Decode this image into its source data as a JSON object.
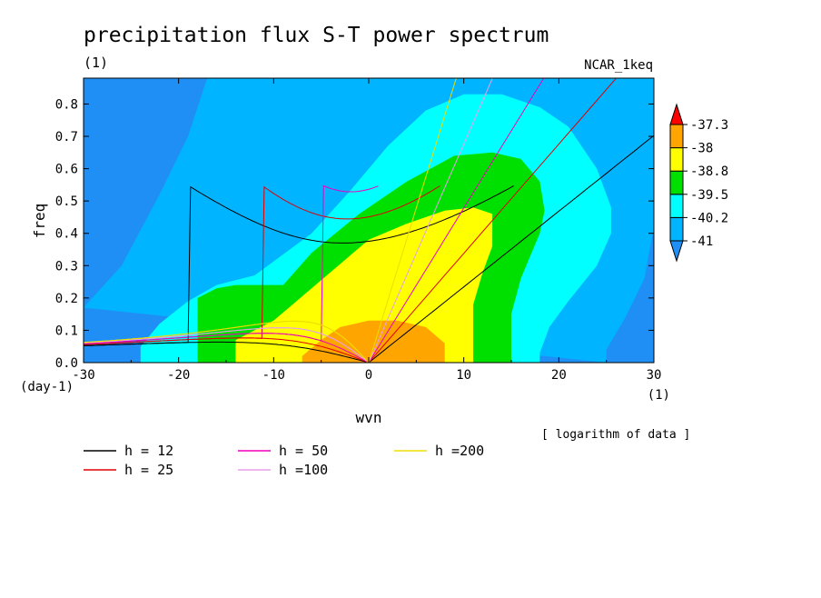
{
  "chart_data": {
    "type": "heatmap",
    "title": "precipitation flux S-T power spectrum",
    "subtitle_left": "(1)",
    "subtitle_right": "NCAR_1keq",
    "xlabel": "wvn",
    "ylabel": "freq",
    "x_unit": "(1)",
    "y_unit": "(day-1)",
    "note": "[ logarithm of data ]",
    "xlim": [
      -30,
      30
    ],
    "ylim": [
      0,
      0.88
    ],
    "x_ticks": [
      -30,
      -20,
      -10,
      0,
      10,
      20,
      30
    ],
    "x_tick_labels": [
      "-30",
      "-20",
      "-10",
      "0",
      "10",
      "20",
      "30"
    ],
    "y_ticks": [
      0,
      0.1,
      0.2,
      0.3,
      0.4,
      0.5,
      0.6,
      0.7,
      0.8
    ],
    "y_tick_labels": [
      "0.0",
      "0.1",
      "0.2",
      "0.3",
      "0.4",
      "0.5",
      "0.6",
      "0.7",
      "0.8"
    ],
    "color_levels": [
      "-41",
      "-40.2",
      "-39.5",
      "-38.8",
      "-38",
      "-37.3"
    ],
    "colors": [
      "#1f8ff5",
      "#00b4ff",
      "#00ffff",
      "#00e000",
      "#ffff00",
      "#ffa500",
      "#ff0000"
    ],
    "contours": [
      {
        "level": "-40.2",
        "points": [
          [
            -30,
            0.17
          ],
          [
            -26,
            0.3
          ],
          [
            -22,
            0.52
          ],
          [
            -19,
            0.7
          ],
          [
            -17,
            0.88
          ],
          [
            30,
            0.88
          ],
          [
            30,
            0.42
          ],
          [
            29,
            0.26
          ],
          [
            27,
            0.14
          ],
          [
            26,
            0.09
          ],
          [
            25,
            0.04
          ],
          [
            25,
            0
          ]
        ]
      },
      {
        "level": "-39.5",
        "points": [
          [
            -24,
            0
          ],
          [
            -24,
            0.05
          ],
          [
            -22,
            0.12
          ],
          [
            -19,
            0.19
          ],
          [
            -16,
            0.24
          ],
          [
            -12,
            0.27
          ],
          [
            -6,
            0.4
          ],
          [
            -2,
            0.53
          ],
          [
            2,
            0.67
          ],
          [
            6,
            0.78
          ],
          [
            10,
            0.83
          ],
          [
            14,
            0.83
          ],
          [
            18,
            0.79
          ],
          [
            21,
            0.73
          ],
          [
            24,
            0.6
          ],
          [
            25.5,
            0.48
          ],
          [
            25.5,
            0.4
          ],
          [
            24,
            0.3
          ],
          [
            21,
            0.19
          ],
          [
            19,
            0.11
          ],
          [
            18,
            0.03
          ],
          [
            18,
            0
          ]
        ]
      },
      {
        "level": "-38.8",
        "points": [
          [
            -18,
            0
          ],
          [
            -18,
            0.2
          ],
          [
            -16,
            0.23
          ],
          [
            -14,
            0.24
          ],
          [
            -9,
            0.24
          ],
          [
            -6,
            0.34
          ],
          [
            -1,
            0.46
          ],
          [
            4,
            0.56
          ],
          [
            9,
            0.64
          ],
          [
            13,
            0.65
          ],
          [
            16,
            0.63
          ],
          [
            18,
            0.56
          ],
          [
            18.5,
            0.47
          ],
          [
            18,
            0.4
          ],
          [
            17,
            0.33
          ],
          [
            16,
            0.26
          ],
          [
            15,
            0.15
          ],
          [
            15,
            0
          ]
        ]
      },
      {
        "level": "-38",
        "points": [
          [
            -14,
            0
          ],
          [
            -14,
            0.07
          ],
          [
            -12,
            0.1
          ],
          [
            -10,
            0.13
          ],
          [
            -8,
            0.18
          ],
          [
            -4,
            0.28
          ],
          [
            0,
            0.38
          ],
          [
            4,
            0.43
          ],
          [
            8,
            0.47
          ],
          [
            11,
            0.48
          ],
          [
            13,
            0.46
          ],
          [
            13,
            0.36
          ],
          [
            12,
            0.28
          ],
          [
            11,
            0.18
          ],
          [
            11,
            0.1
          ],
          [
            11,
            0
          ]
        ]
      },
      {
        "level": "-37.3",
        "points": [
          [
            -7,
            0
          ],
          [
            -7,
            0.02
          ],
          [
            -5,
            0.07
          ],
          [
            -3,
            0.11
          ],
          [
            0,
            0.13
          ],
          [
            3,
            0.13
          ],
          [
            6,
            0.11
          ],
          [
            8,
            0.06
          ],
          [
            8,
            0
          ]
        ]
      }
    ],
    "dispersion_curves": [
      {
        "name": "h = 12",
        "color": "#000000"
      },
      {
        "name": "h = 25",
        "color": "#e00000"
      },
      {
        "name": "h = 50",
        "color": "#ee00bb"
      },
      {
        "name": "h =100",
        "color": "#e8a0e8"
      },
      {
        "name": "h =200",
        "color": "#eedd00"
      }
    ],
    "legend_placement": "bottom-left",
    "colorbar_placement": "right"
  }
}
